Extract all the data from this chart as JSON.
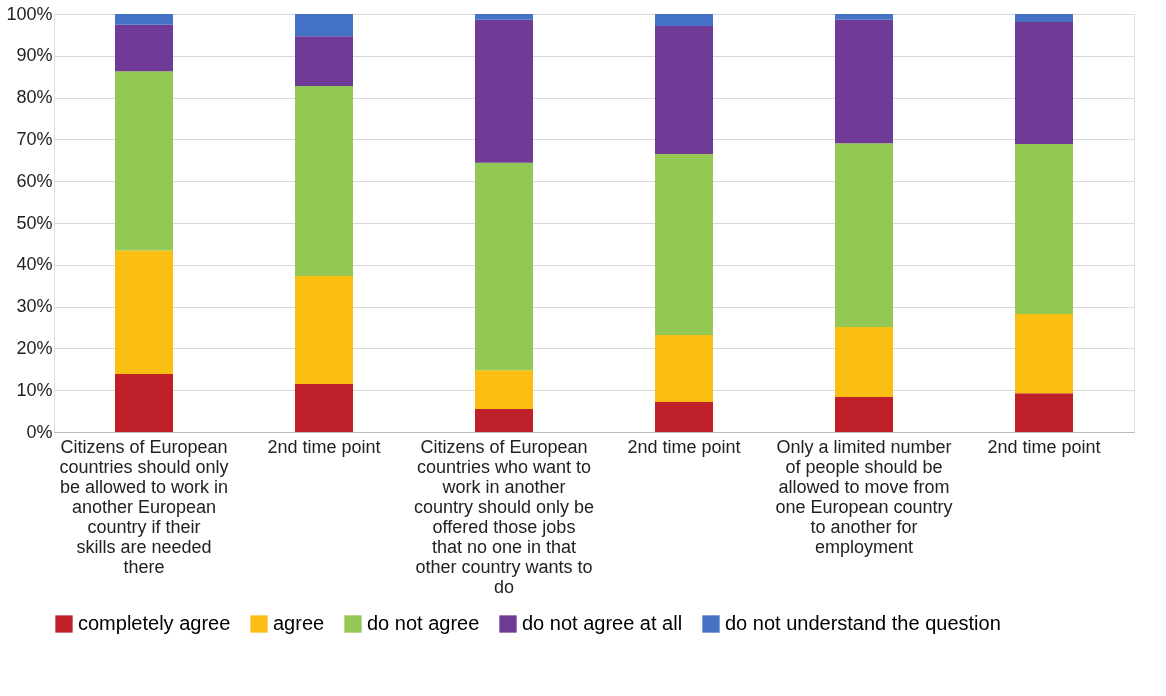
{
  "chart_data": {
    "type": "bar",
    "stacked": true,
    "categories": [
      "Citizens of European countries should only be allowed to work in another European country if their skills are needed there",
      "2nd time point",
      "Citizens of European countries who want to work in another country should only be offered those jobs that no one in that other country wants to do",
      "2nd time point",
      "Only a limited number of people should be allowed to move from one European country to another for employment",
      "2nd time point"
    ],
    "series": [
      {
        "name": "completely agree",
        "color": "#c0202a",
        "values": [
          13.9,
          11.5,
          5.5,
          7.2,
          8.4,
          9.3
        ]
      },
      {
        "name": "agree",
        "color": "#fbbf14",
        "values": [
          29.5,
          25.8,
          9.3,
          16.0,
          16.7,
          18.9
        ]
      },
      {
        "name": "do not agree",
        "color": "#92c853",
        "values": [
          42.9,
          45.5,
          49.6,
          43.3,
          44.0,
          40.7
        ]
      },
      {
        "name": "do not agree at all",
        "color": "#703a97",
        "values": [
          11.1,
          11.9,
          34.2,
          30.6,
          29.5,
          29.2
        ]
      },
      {
        "name": "do not understand the question",
        "color": "#4472c4",
        "values": [
          2.6,
          5.3,
          1.4,
          2.9,
          1.4,
          1.9
        ]
      }
    ],
    "ylim": [
      0,
      100
    ],
    "yticks": [
      {
        "value": 0,
        "label": "0%"
      },
      {
        "value": 10,
        "label": "10%"
      },
      {
        "value": 20,
        "label": "20%"
      },
      {
        "value": 30,
        "label": "30%"
      },
      {
        "value": 40,
        "label": "40%"
      },
      {
        "value": 50,
        "label": "50%"
      },
      {
        "value": 60,
        "label": "60%"
      },
      {
        "value": 70,
        "label": "70%"
      },
      {
        "value": 80,
        "label": "80%"
      },
      {
        "value": 90,
        "label": "90%"
      },
      {
        "value": 100,
        "label": "100%"
      }
    ],
    "grid": "y",
    "legend": "bottom"
  }
}
